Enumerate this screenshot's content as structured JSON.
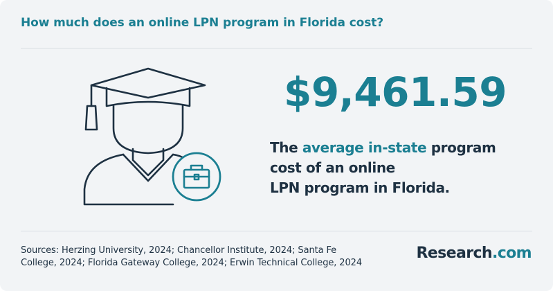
{
  "header": {
    "title": "How much does an online LPN program in Florida cost?"
  },
  "stat": {
    "amount": "$9,461.59",
    "desc_prefix": "The ",
    "desc_highlight": "average in-state",
    "desc_line1_rest": " program",
    "desc_line2": "cost of an online",
    "desc_line3": "LPN program in Florida."
  },
  "footer": {
    "sources_line1": "Sources: Herzing University, 2024; Chancellor Institute, 2024; Santa Fe",
    "sources_line2": "College, 2024; Florida Gateway College, 2024; Erwin Technical College, 2024",
    "brand_main": "Research",
    "brand_suffix": ".com"
  },
  "icons": {
    "illustration": "graduate-with-briefcase-icon"
  },
  "colors": {
    "accent": "#1b7f92",
    "dark": "#1e3142",
    "background": "#f2f4f6"
  }
}
